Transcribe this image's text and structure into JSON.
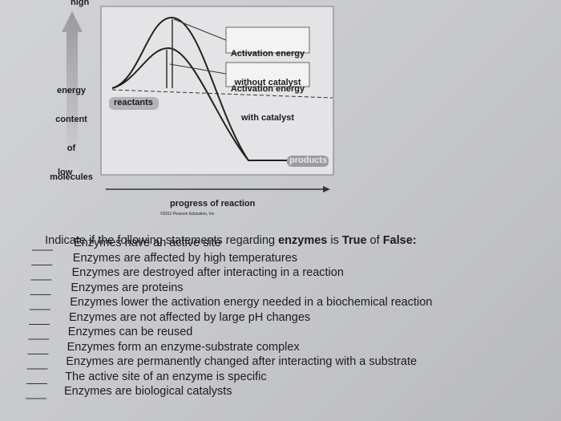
{
  "diagram": {
    "y_high": "high",
    "y_label": [
      "energy",
      "content",
      "of",
      "molecules"
    ],
    "y_low": "low",
    "label_without": [
      "Activation energy",
      "without catalyst"
    ],
    "label_with": [
      "Activation energy",
      "with catalyst"
    ],
    "reactants": "reactants",
    "products": "products",
    "x_label": "progress of reaction",
    "copyright": "©2011 Pearson Education, Inc"
  },
  "instruction": [
    "Indicate if the following statements regarding ",
    "enzymes",
    " is ",
    "True",
    " of ",
    "False:"
  ],
  "statements": [
    "Enzymes have an active site",
    "Enzymes are affected by high temperatures",
    "Enzymes are destroyed after interacting in a reaction",
    "Enzymes are proteins",
    "Enzymes lower the activation energy needed in a biochemical reaction",
    "Enzymes are not affected by large pH changes",
    "Enzymes can be reused",
    "Enzymes form an enzyme-substrate complex",
    "Enzymes are permanently changed after interacting with a substrate",
    "The active site of an enzyme is specific",
    "Enzymes are biological catalysts"
  ]
}
